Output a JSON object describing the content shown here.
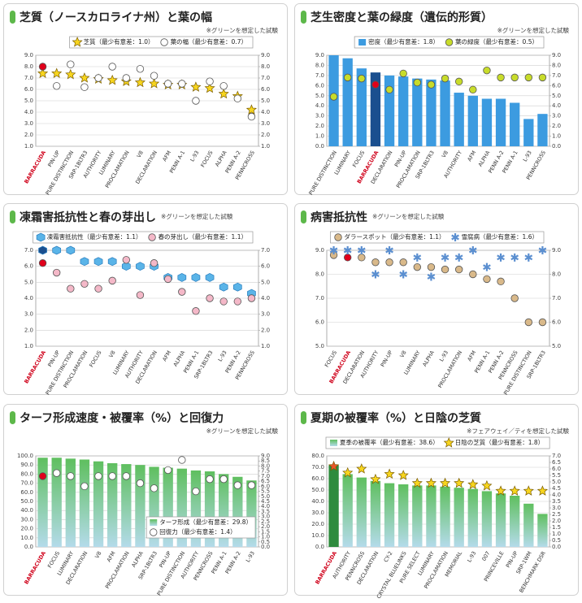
{
  "chart_data": [
    {
      "type": "combo",
      "title": "芝質（ノースカロライナ州）と葉の幅",
      "note": "※グリーンを想定した試験",
      "legend": "top-right",
      "highlight": 0,
      "label_highlight_color": "#d0021b",
      "categories": [
        "BARRACUDA",
        "PIN-UP",
        "PURE DISTINCTION",
        "SRP-1BLTR3",
        "AUTHORITY",
        "LUMINARY",
        "PROCLAMATION",
        "V8",
        "DECLARATION",
        "AFM",
        "PENN A-1",
        "L-93",
        "FOCUS",
        "ALPHA",
        "PENN A-2",
        "PENNCROSS"
      ],
      "series": [
        {
          "name": "芝質（最少有意差：1.0）",
          "kind": "star",
          "color": "#f7d51e",
          "values": [
            7.4,
            7.4,
            7.3,
            7.0,
            6.9,
            6.8,
            6.7,
            6.6,
            6.5,
            6.4,
            6.4,
            6.2,
            6.1,
            5.6,
            5.4,
            4.2
          ]
        },
        {
          "name": "葉の幅（最少有意差：0.7）",
          "kind": "circle",
          "color": "#ffffff",
          "highlight_color": "#e0001b",
          "axis": "y2",
          "values": [
            8.0,
            6.3,
            8.2,
            6.2,
            7.0,
            8.0,
            7.0,
            7.8,
            7.2,
            6.5,
            6.5,
            5.0,
            6.7,
            6.3,
            5.2,
            3.6
          ]
        }
      ],
      "ylim": [
        1,
        9
      ],
      "yticks": [
        {
          "value": 1,
          "label": "1.0"
        },
        {
          "value": 2,
          "label": "2.0"
        },
        {
          "value": 3,
          "label": "3.0"
        },
        {
          "value": 4,
          "label": "4.0"
        },
        {
          "value": 5,
          "label": "5.0"
        },
        {
          "value": 6,
          "label": "6.0"
        },
        {
          "value": 7,
          "label": "7.0"
        },
        {
          "value": 8,
          "label": "8.0"
        },
        {
          "value": 9,
          "label": "9.0"
        }
      ],
      "y2lim": [
        1,
        9
      ],
      "y2ticks": [
        {
          "value": 1,
          "label": "1.0"
        },
        {
          "value": 2,
          "label": "2.0"
        },
        {
          "value": 3,
          "label": "3.0"
        },
        {
          "value": 4,
          "label": "4.0"
        },
        {
          "value": 5,
          "label": "5.0"
        },
        {
          "value": 6,
          "label": "6.0"
        },
        {
          "value": 7,
          "label": "7.0"
        },
        {
          "value": 8,
          "label": "8.0"
        },
        {
          "value": 9,
          "label": "9.0"
        }
      ],
      "grid": true
    },
    {
      "type": "combo",
      "title": "芝生密度と葉の緑度（遺伝的形質）",
      "note": "※グリーンを想定した試験",
      "legend": "top-right",
      "highlight": 3,
      "label_highlight_color": "#d0021b",
      "categories": [
        "PURE DISTINCTION",
        "LUMINARY",
        "FOCUS",
        "BARRACUDA",
        "DECLARATION",
        "PIN-UP",
        "PROCLAMATION",
        "SRP-1BLTR3",
        "V8",
        "AUTHORITY",
        "AFM",
        "ALPHA",
        "PENN A-2",
        "PENN A-1",
        "L-93",
        "PENNCROSS"
      ],
      "series": [
        {
          "name": "密度（最少有意差：1.8）",
          "kind": "bar",
          "color": "#3c9be0",
          "highlight_color": "#1a4f8f",
          "values": [
            9.0,
            8.7,
            7.7,
            7.3,
            7.0,
            6.9,
            6.7,
            6.6,
            6.5,
            5.3,
            5.0,
            4.7,
            4.7,
            4.3,
            2.7,
            3.2
          ]
        },
        {
          "name": "葉の緑度（最少有意差：0.5）",
          "kind": "circle",
          "color": "#c8dc2a",
          "highlight_color": "#e0001b",
          "axis": "y2",
          "values": [
            4.9,
            6.8,
            6.7,
            6.1,
            5.6,
            7.2,
            6.3,
            6.1,
            6.7,
            6.4,
            5.6,
            7.5,
            6.8,
            6.8,
            6.8,
            6.8
          ]
        }
      ],
      "ylim": [
        0,
        9
      ],
      "yticks": [
        {
          "value": 0,
          "label": "0.0"
        },
        {
          "value": 1,
          "label": "1.0"
        },
        {
          "value": 2,
          "label": "2.0"
        },
        {
          "value": 3,
          "label": "3.0"
        },
        {
          "value": 4,
          "label": "4.0"
        },
        {
          "value": 5,
          "label": "5.0"
        },
        {
          "value": 6,
          "label": "6.0"
        },
        {
          "value": 7,
          "label": "7.0"
        },
        {
          "value": 8,
          "label": "8.0"
        },
        {
          "value": 9,
          "label": "9.0"
        }
      ],
      "y2lim": [
        0,
        9
      ],
      "y2ticks": [
        {
          "value": 0,
          "label": "0.0"
        },
        {
          "value": 1,
          "label": "1.0"
        },
        {
          "value": 2,
          "label": "2.0"
        },
        {
          "value": 3,
          "label": "3.0"
        },
        {
          "value": 4,
          "label": "4.0"
        },
        {
          "value": 5,
          "label": "5.0"
        },
        {
          "value": 6,
          "label": "6.0"
        },
        {
          "value": 7,
          "label": "7.0"
        },
        {
          "value": 8,
          "label": "8.0"
        },
        {
          "value": 9,
          "label": "9.0"
        }
      ],
      "grid": true
    },
    {
      "type": "combo",
      "title": "凍霜害抵抗性と春の芽出し",
      "note": "※グリーンを想定した試験",
      "legend": "top-right",
      "highlight": 0,
      "label_highlight_color": "#d0021b",
      "categories": [
        "BARRACUDA",
        "PIN-UP",
        "PURE DISTINCTION",
        "PROCLAMATION",
        "FOCUS",
        "V8",
        "LUMINARY",
        "AUTHORITY",
        "DECLARATION",
        "AFM",
        "ALPHA",
        "PENN A-1",
        "SRP-1BLTR3",
        "L-93",
        "PENN A-2",
        "PENNCROSS"
      ],
      "series": [
        {
          "name": "凍霜害抵抗性（最少有意差：1.1）",
          "kind": "cube",
          "color": "#5ab4e8",
          "highlight_color": "#1a4f8f",
          "values": [
            7.0,
            7.0,
            7.0,
            6.3,
            6.3,
            6.3,
            6.0,
            6.0,
            6.0,
            5.3,
            5.3,
            5.3,
            5.3,
            4.7,
            4.7,
            4.3
          ]
        },
        {
          "name": "春の芽出し（最少有意差：1.1）",
          "kind": "circle",
          "color": "#f4b8c8",
          "highlight_color": "#e0001b",
          "axis": "y2",
          "values": [
            6.2,
            5.6,
            4.6,
            4.9,
            4.6,
            5.1,
            6.4,
            4.2,
            6.2,
            5.2,
            4.4,
            3.2,
            4.0,
            3.8,
            3.8,
            4.0
          ]
        }
      ],
      "ylim": [
        1,
        7
      ],
      "yticks": [
        {
          "value": 1,
          "label": "1.0"
        },
        {
          "value": 2,
          "label": "2.0"
        },
        {
          "value": 3,
          "label": "3.0"
        },
        {
          "value": 4,
          "label": "4.0"
        },
        {
          "value": 5,
          "label": "5.0"
        },
        {
          "value": 6,
          "label": "6.0"
        },
        {
          "value": 7,
          "label": "7.0"
        }
      ],
      "y2lim": [
        1,
        7
      ],
      "y2ticks": [
        {
          "value": 1,
          "label": "1.0"
        },
        {
          "value": 2,
          "label": "2.0"
        },
        {
          "value": 3,
          "label": "3.0"
        },
        {
          "value": 4,
          "label": "4.0"
        },
        {
          "value": 5,
          "label": "5.0"
        },
        {
          "value": 6,
          "label": "6.0"
        },
        {
          "value": 7,
          "label": "7.0"
        }
      ],
      "grid": true
    },
    {
      "type": "combo",
      "title": "病害抵抗性",
      "note": "※グリーンを想定した試験",
      "legend": "top-right",
      "highlight": 1,
      "label_highlight_color": "#d0021b",
      "categories": [
        "FOCUS",
        "BARRACUDA",
        "DECLARATION",
        "AUTHORITY",
        "PIN-UP",
        "V8",
        "LUMINARY",
        "ALPHA",
        "L-93",
        "PROCLAMATION",
        "AFM",
        "PENN A-1",
        "PENN A-2",
        "PENNCROSS",
        "PURE DISTINCTION",
        "SRP-1BLTR3"
      ],
      "series": [
        {
          "name": "ダラースポット（最少有意差：1.1）",
          "kind": "circle",
          "color": "#d9b98a",
          "highlight_color": "#e0001b",
          "values": [
            8.8,
            8.7,
            8.7,
            8.5,
            8.5,
            8.5,
            8.3,
            8.3,
            8.2,
            8.2,
            8.0,
            7.8,
            7.7,
            7.0,
            6.0,
            6.0
          ]
        },
        {
          "name": "雪腐病（最少有意差：1.6）",
          "kind": "asterisk",
          "color": "#5b8fd0",
          "axis": "y2",
          "values": [
            9.0,
            9.0,
            9.0,
            8.0,
            9.0,
            8.0,
            8.7,
            7.9,
            8.7,
            8.7,
            9.0,
            8.3,
            8.7,
            8.7,
            8.7,
            9.0
          ]
        }
      ],
      "ylim": [
        5,
        9
      ],
      "yticks": [
        {
          "value": 5,
          "label": "5.0"
        },
        {
          "value": 6,
          "label": "6.0"
        },
        {
          "value": 7,
          "label": "7.0"
        },
        {
          "value": 8,
          "label": "8.0"
        },
        {
          "value": 9,
          "label": "9.0"
        }
      ],
      "y2lim": [
        5,
        9
      ],
      "y2ticks": [
        {
          "value": 5,
          "label": "5.0"
        },
        {
          "value": 6,
          "label": "6.0"
        },
        {
          "value": 7,
          "label": "7.0"
        },
        {
          "value": 8,
          "label": "8.0"
        },
        {
          "value": 9,
          "label": "9.0"
        }
      ],
      "grid": true
    },
    {
      "type": "combo",
      "title": "ターフ形成速度・被覆率（%）と回復力",
      "note": "※グリーンを想定した試験",
      "legend": "bottom-right",
      "highlight": 0,
      "label_highlight_color": "#d0021b",
      "categories": [
        "BARRACUDA",
        "FOCUS",
        "LUMINARY",
        "DECLARATION",
        "V8",
        "AFM",
        "PROCLAMATION",
        "ALPHA",
        "SRP-1BLTR3",
        "PIN-UP",
        "PURE DISTINCTION",
        "AUTHORITY",
        "PENNCROSS",
        "PENN A-1",
        "PENN A-2",
        "L-93"
      ],
      "series": [
        {
          "name": "ターフ形成（最少有意差：29.8）",
          "kind": "bar",
          "color": "#7bc67b",
          "values": [
            98,
            98,
            97,
            96,
            94,
            92,
            91,
            90,
            88,
            87,
            86,
            84,
            83,
            80,
            77,
            73
          ]
        },
        {
          "name": "回復力（最少有意差：1.4）",
          "kind": "circle",
          "color": "#ffffff",
          "highlight_color": "#e0001b",
          "axis": "y2",
          "values": [
            7.0,
            7.3,
            7.0,
            6.0,
            7.0,
            7.0,
            7.0,
            6.3,
            5.8,
            7.6,
            8.6,
            5.5,
            6.7,
            6.7,
            6.1,
            6.1
          ]
        }
      ],
      "ylim": [
        0,
        100
      ],
      "yticks": [
        {
          "value": 0,
          "label": "0.0"
        },
        {
          "value": 10,
          "label": "10.0"
        },
        {
          "value": 20,
          "label": "20.0"
        },
        {
          "value": 30,
          "label": "30.0"
        },
        {
          "value": 40,
          "label": "40.0"
        },
        {
          "value": 50,
          "label": "50.0"
        },
        {
          "value": 60,
          "label": "60.0"
        },
        {
          "value": 70,
          "label": "70.0"
        },
        {
          "value": 80,
          "label": "80.0"
        },
        {
          "value": 90,
          "label": "90.0"
        },
        {
          "value": 100,
          "label": "100.0"
        }
      ],
      "y2lim": [
        0,
        9
      ],
      "y2ticks": [
        {
          "value": 0,
          "label": "0.0"
        },
        0.5,
        {
          "value": 1,
          "label": "1.0"
        },
        1.5,
        {
          "value": 2,
          "label": "2.0"
        },
        2.5,
        {
          "value": 3,
          "label": "3.0"
        },
        3.5,
        {
          "value": 4,
          "label": "4.0"
        },
        4.5,
        {
          "value": 5,
          "label": "5.0"
        },
        5.5,
        {
          "value": 6,
          "label": "6.0"
        },
        6.5,
        {
          "value": 7,
          "label": "7.0"
        },
        7.5,
        {
          "value": 8,
          "label": "8.0"
        },
        8.5,
        {
          "value": 9,
          "label": "9.0"
        }
      ],
      "grid": true
    },
    {
      "type": "combo",
      "title": "夏期の被覆率（%）と日陰の芝質",
      "note": "※フェアウェイ／ティを想定した試験",
      "legend": "top-left",
      "highlight": 0,
      "label_highlight_color": "#d0021b",
      "categories": [
        "BARRACUDA",
        "AUTHORITY",
        "PENNCROSS",
        "DECLARATION",
        "CY-2",
        "CRYSTAL BLUELINKS",
        "PURE SELECT",
        "LUMINARY",
        "PROCLAMATION",
        "MEMORIAL",
        "L-93",
        "007",
        "PRINCEVILLE",
        "PIN-UP",
        "SRP-1WM",
        "BENCHMARK DSR"
      ],
      "series": [
        {
          "name": "夏季の被覆率（最少有意差：38.6）",
          "kind": "bar",
          "color": "#7bc67b",
          "highlight_color": "#2e8b3e",
          "values": [
            72,
            64,
            61,
            58,
            56,
            55,
            54,
            54,
            53,
            52,
            51,
            49,
            47,
            45,
            38,
            29
          ]
        },
        {
          "name": "日陰の芝質（最少有意差：1.8）",
          "kind": "star",
          "color": "#f7d51e",
          "highlight_color": "#e8542a",
          "axis": "y2",
          "values": [
            6.2,
            5.7,
            6.0,
            5.2,
            5.6,
            5.5,
            4.9,
            4.9,
            4.9,
            4.9,
            4.8,
            4.7,
            4.3,
            4.3,
            4.3,
            4.3
          ]
        }
      ],
      "ylim": [
        0,
        80
      ],
      "yticks": [
        {
          "value": 0,
          "label": "0.0"
        },
        {
          "value": 10,
          "label": "10.0"
        },
        {
          "value": 20,
          "label": "20.0"
        },
        {
          "value": 30,
          "label": "30.0"
        },
        {
          "value": 40,
          "label": "40.0"
        },
        {
          "value": 50,
          "label": "50.0"
        },
        {
          "value": 60,
          "label": "60.0"
        },
        {
          "value": 70,
          "label": "70.0"
        },
        {
          "value": 80,
          "label": "80.0"
        }
      ],
      "y2lim": [
        0,
        7
      ],
      "y2ticks": [
        {
          "value": 0,
          "label": "0.0"
        },
        0.5,
        {
          "value": 1,
          "label": "1.0"
        },
        1.5,
        {
          "value": 2,
          "label": "2.0"
        },
        2.5,
        {
          "value": 3,
          "label": "3.0"
        },
        3.5,
        {
          "value": 4,
          "label": "4.0"
        },
        4.5,
        {
          "value": 5,
          "label": "5.0"
        },
        5.5,
        {
          "value": 6,
          "label": "6.0"
        },
        6.5,
        {
          "value": 7,
          "label": "7.0"
        }
      ],
      "grid": true
    }
  ]
}
